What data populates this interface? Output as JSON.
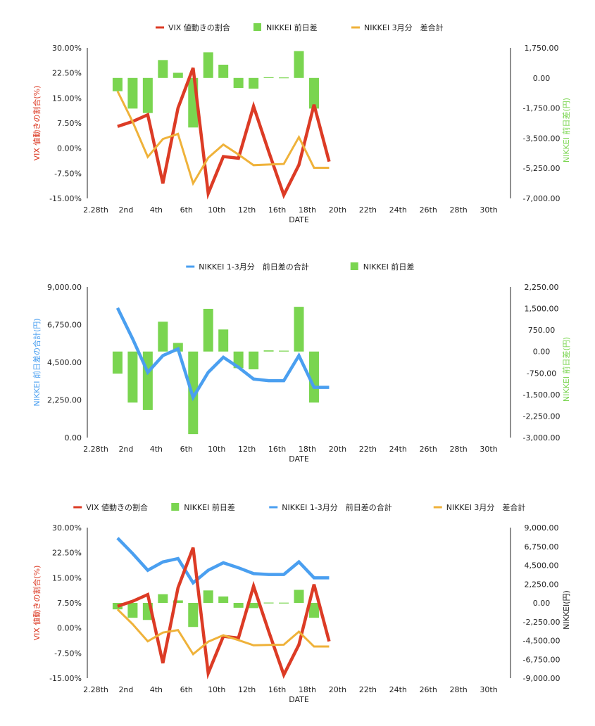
{
  "colors": {
    "vix": "#dc3b25",
    "diff_bar": "#7ad550",
    "march_line": "#efb23a",
    "q1_line": "#4a9ff0",
    "axis": "#222222"
  },
  "chart_data": [
    {
      "type": "bar",
      "title": "",
      "xlabel": "DATE",
      "ylabel_left": "VIX 値動きの割合(%)",
      "ylabel_right": "NIKKEI 前日差(円)",
      "x_categories": [
        "2.28th",
        "2nd",
        "4th",
        "6th",
        "10th",
        "12th",
        "16th",
        "18th",
        "20th",
        "22th",
        "24th",
        "26th",
        "28th",
        "30th"
      ],
      "left_ticks": [
        "30.00%",
        "22.50%",
        "15.00%",
        "7.50%",
        "0.00%",
        "-7.50%",
        "-15.00%"
      ],
      "right_ticks": [
        "1,750.00",
        "0.00",
        "-1,750.00",
        "-3,500.00",
        "-5,250.00",
        "-7,000.00"
      ],
      "left_range": [
        -15,
        30
      ],
      "right_range": [
        -7000,
        1750
      ],
      "legend": [
        {
          "label": "VIX 値動きの割合",
          "kind": "line",
          "color": "#dc3b25"
        },
        {
          "label": "NIKKEI 前日差",
          "kind": "bar",
          "color": "#7ad550"
        },
        {
          "label": "NIKKEI 3月分　差合計",
          "kind": "line",
          "color": "#efb23a"
        }
      ],
      "series": [
        {
          "name": "NIKKEI 前日差",
          "kind": "bar",
          "axis": "right",
          "x": [
            1,
            2,
            3,
            4,
            5,
            6,
            7,
            8,
            9,
            10,
            11,
            12,
            13,
            14
          ],
          "values": [
            -770,
            -1780,
            -2040,
            1040,
            300,
            -2880,
            1490,
            770,
            -580,
            -620,
            40,
            30,
            1560,
            -1780
          ]
        },
        {
          "name": "VIX 値動きの割合",
          "kind": "line",
          "axis": "left",
          "width": 4.5,
          "x": [
            1,
            2,
            3,
            4,
            5,
            6,
            7,
            8,
            9,
            10,
            11,
            12,
            13,
            14,
            15
          ],
          "values": [
            6.5,
            8,
            10,
            -10.5,
            12,
            24,
            -13.5,
            -2.5,
            -3,
            12.5,
            -1,
            -14,
            -5,
            13,
            -4
          ]
        },
        {
          "name": "NIKKEI 3月分　差合計",
          "kind": "line",
          "axis": "right",
          "width": 3,
          "x": [
            1,
            2,
            3,
            4,
            5,
            6,
            7,
            8,
            9,
            10,
            11,
            12,
            13,
            14,
            15
          ],
          "values": [
            -770,
            -2550,
            -4590,
            -3550,
            -3250,
            -6130,
            -4640,
            -3870,
            -4450,
            -5070,
            -5030,
            -5000,
            -3440,
            -5220,
            -5220
          ]
        }
      ]
    },
    {
      "type": "bar",
      "title": "",
      "xlabel": "DATE",
      "ylabel_left": "NIKKEI 前日差の合計(円)",
      "ylabel_right": "NIKKEI 前日差(円)",
      "x_categories": [
        "2.28th",
        "2nd",
        "4th",
        "6th",
        "10th",
        "12th",
        "16th",
        "18th",
        "20th",
        "22th",
        "24th",
        "26th",
        "28th",
        "30th"
      ],
      "left_ticks": [
        "9,000.00",
        "6,750.00",
        "4,500.00",
        "2,250.00",
        "0.00"
      ],
      "right_ticks": [
        "2,250.00",
        "1,500.00",
        "750.00",
        "0.00",
        "-750.00",
        "-1,500.00",
        "-2,250.00",
        "-3,000.00"
      ],
      "left_range": [
        0,
        9000
      ],
      "right_range": [
        -3000,
        2250
      ],
      "legend": [
        {
          "label": "NIKKEI 1-3月分　前日差の合計",
          "kind": "line",
          "color": "#4a9ff0"
        },
        {
          "label": "NIKKEI 前日差",
          "kind": "bar",
          "color": "#7ad550"
        }
      ],
      "series": [
        {
          "name": "NIKKEI 前日差",
          "kind": "bar",
          "axis": "right",
          "x": [
            1,
            2,
            3,
            4,
            5,
            6,
            7,
            8,
            9,
            10,
            11,
            12,
            13,
            14
          ],
          "values": [
            -770,
            -1780,
            -2040,
            1040,
            300,
            -2880,
            1490,
            770,
            -580,
            -620,
            40,
            30,
            1560,
            -1780
          ]
        },
        {
          "name": "NIKKEI 1-3月分　前日差の合計",
          "kind": "line",
          "axis": "left",
          "width": 4.5,
          "x": [
            1,
            2,
            3,
            4,
            5,
            6,
            7,
            8,
            9,
            10,
            11,
            12,
            13,
            14,
            15
          ],
          "values": [
            7750,
            5900,
            3900,
            4900,
            5300,
            2400,
            3900,
            4800,
            4200,
            3500,
            3400,
            3400,
            4900,
            3000,
            3000
          ]
        }
      ]
    },
    {
      "type": "bar",
      "title": "",
      "xlabel": "DATE",
      "ylabel_left": "VIX 値動きの割合(%)",
      "ylabel_right": "NIKKEI(円)",
      "x_categories": [
        "2.28th",
        "2nd",
        "4th",
        "6th",
        "10th",
        "12th",
        "16th",
        "18th",
        "20th",
        "22th",
        "24th",
        "26th",
        "28th",
        "30th"
      ],
      "left_ticks": [
        "30.00%",
        "22.50%",
        "15.00%",
        "7.50%",
        "0.00%",
        "-7.50%",
        "-15.00%"
      ],
      "right_ticks": [
        "9,000.00",
        "6,750.00",
        "4,500.00",
        "2,250.00",
        "0.00",
        "-2,250.00",
        "-4,500.00",
        "-6,750.00",
        "-9,000.00"
      ],
      "left_range": [
        -15,
        30
      ],
      "right_range": [
        -9000,
        9000
      ],
      "legend": [
        {
          "label": "VIX 値動きの割合",
          "kind": "line",
          "color": "#dc3b25"
        },
        {
          "label": "NIKKEI 前日差",
          "kind": "bar",
          "color": "#7ad550"
        },
        {
          "label": "NIKKEI 1-3月分　前日差の合計",
          "kind": "line",
          "color": "#4a9ff0"
        },
        {
          "label": "NIKKEI 3月分　差合計",
          "kind": "line",
          "color": "#efb23a"
        }
      ],
      "series": [
        {
          "name": "NIKKEI 前日差",
          "kind": "bar",
          "axis": "right",
          "x": [
            1,
            2,
            3,
            4,
            5,
            6,
            7,
            8,
            9,
            10,
            11,
            12,
            13,
            14
          ],
          "values": [
            -770,
            -1780,
            -2040,
            1040,
            300,
            -2880,
            1490,
            770,
            -580,
            -620,
            40,
            30,
            1560,
            -1780
          ]
        },
        {
          "name": "NIKKEI 1-3月分　前日差の合計",
          "kind": "line",
          "axis": "right",
          "width": 4.5,
          "x": [
            1,
            2,
            3,
            4,
            5,
            6,
            7,
            8,
            9,
            10,
            11,
            12,
            13,
            14,
            15
          ],
          "values": [
            7750,
            5900,
            3900,
            4900,
            5300,
            2400,
            3900,
            4800,
            4200,
            3500,
            3400,
            3400,
            4900,
            3000,
            3000
          ]
        },
        {
          "name": "VIX 値動きの割合",
          "kind": "line",
          "axis": "left",
          "width": 4.5,
          "x": [
            1,
            2,
            3,
            4,
            5,
            6,
            7,
            8,
            9,
            10,
            11,
            12,
            13,
            14,
            15
          ],
          "values": [
            6.5,
            8,
            10,
            -10.5,
            12,
            24,
            -13.5,
            -2.5,
            -3,
            12.5,
            -1,
            -14,
            -5,
            13,
            -4
          ]
        },
        {
          "name": "NIKKEI 3月分　差合計",
          "kind": "line",
          "axis": "right",
          "width": 3,
          "x": [
            1,
            2,
            3,
            4,
            5,
            6,
            7,
            8,
            9,
            10,
            11,
            12,
            13,
            14,
            15
          ],
          "values": [
            -770,
            -2550,
            -4590,
            -3550,
            -3250,
            -6130,
            -4640,
            -3870,
            -4450,
            -5070,
            -5030,
            -5000,
            -3440,
            -5220,
            -5220
          ]
        }
      ]
    }
  ]
}
